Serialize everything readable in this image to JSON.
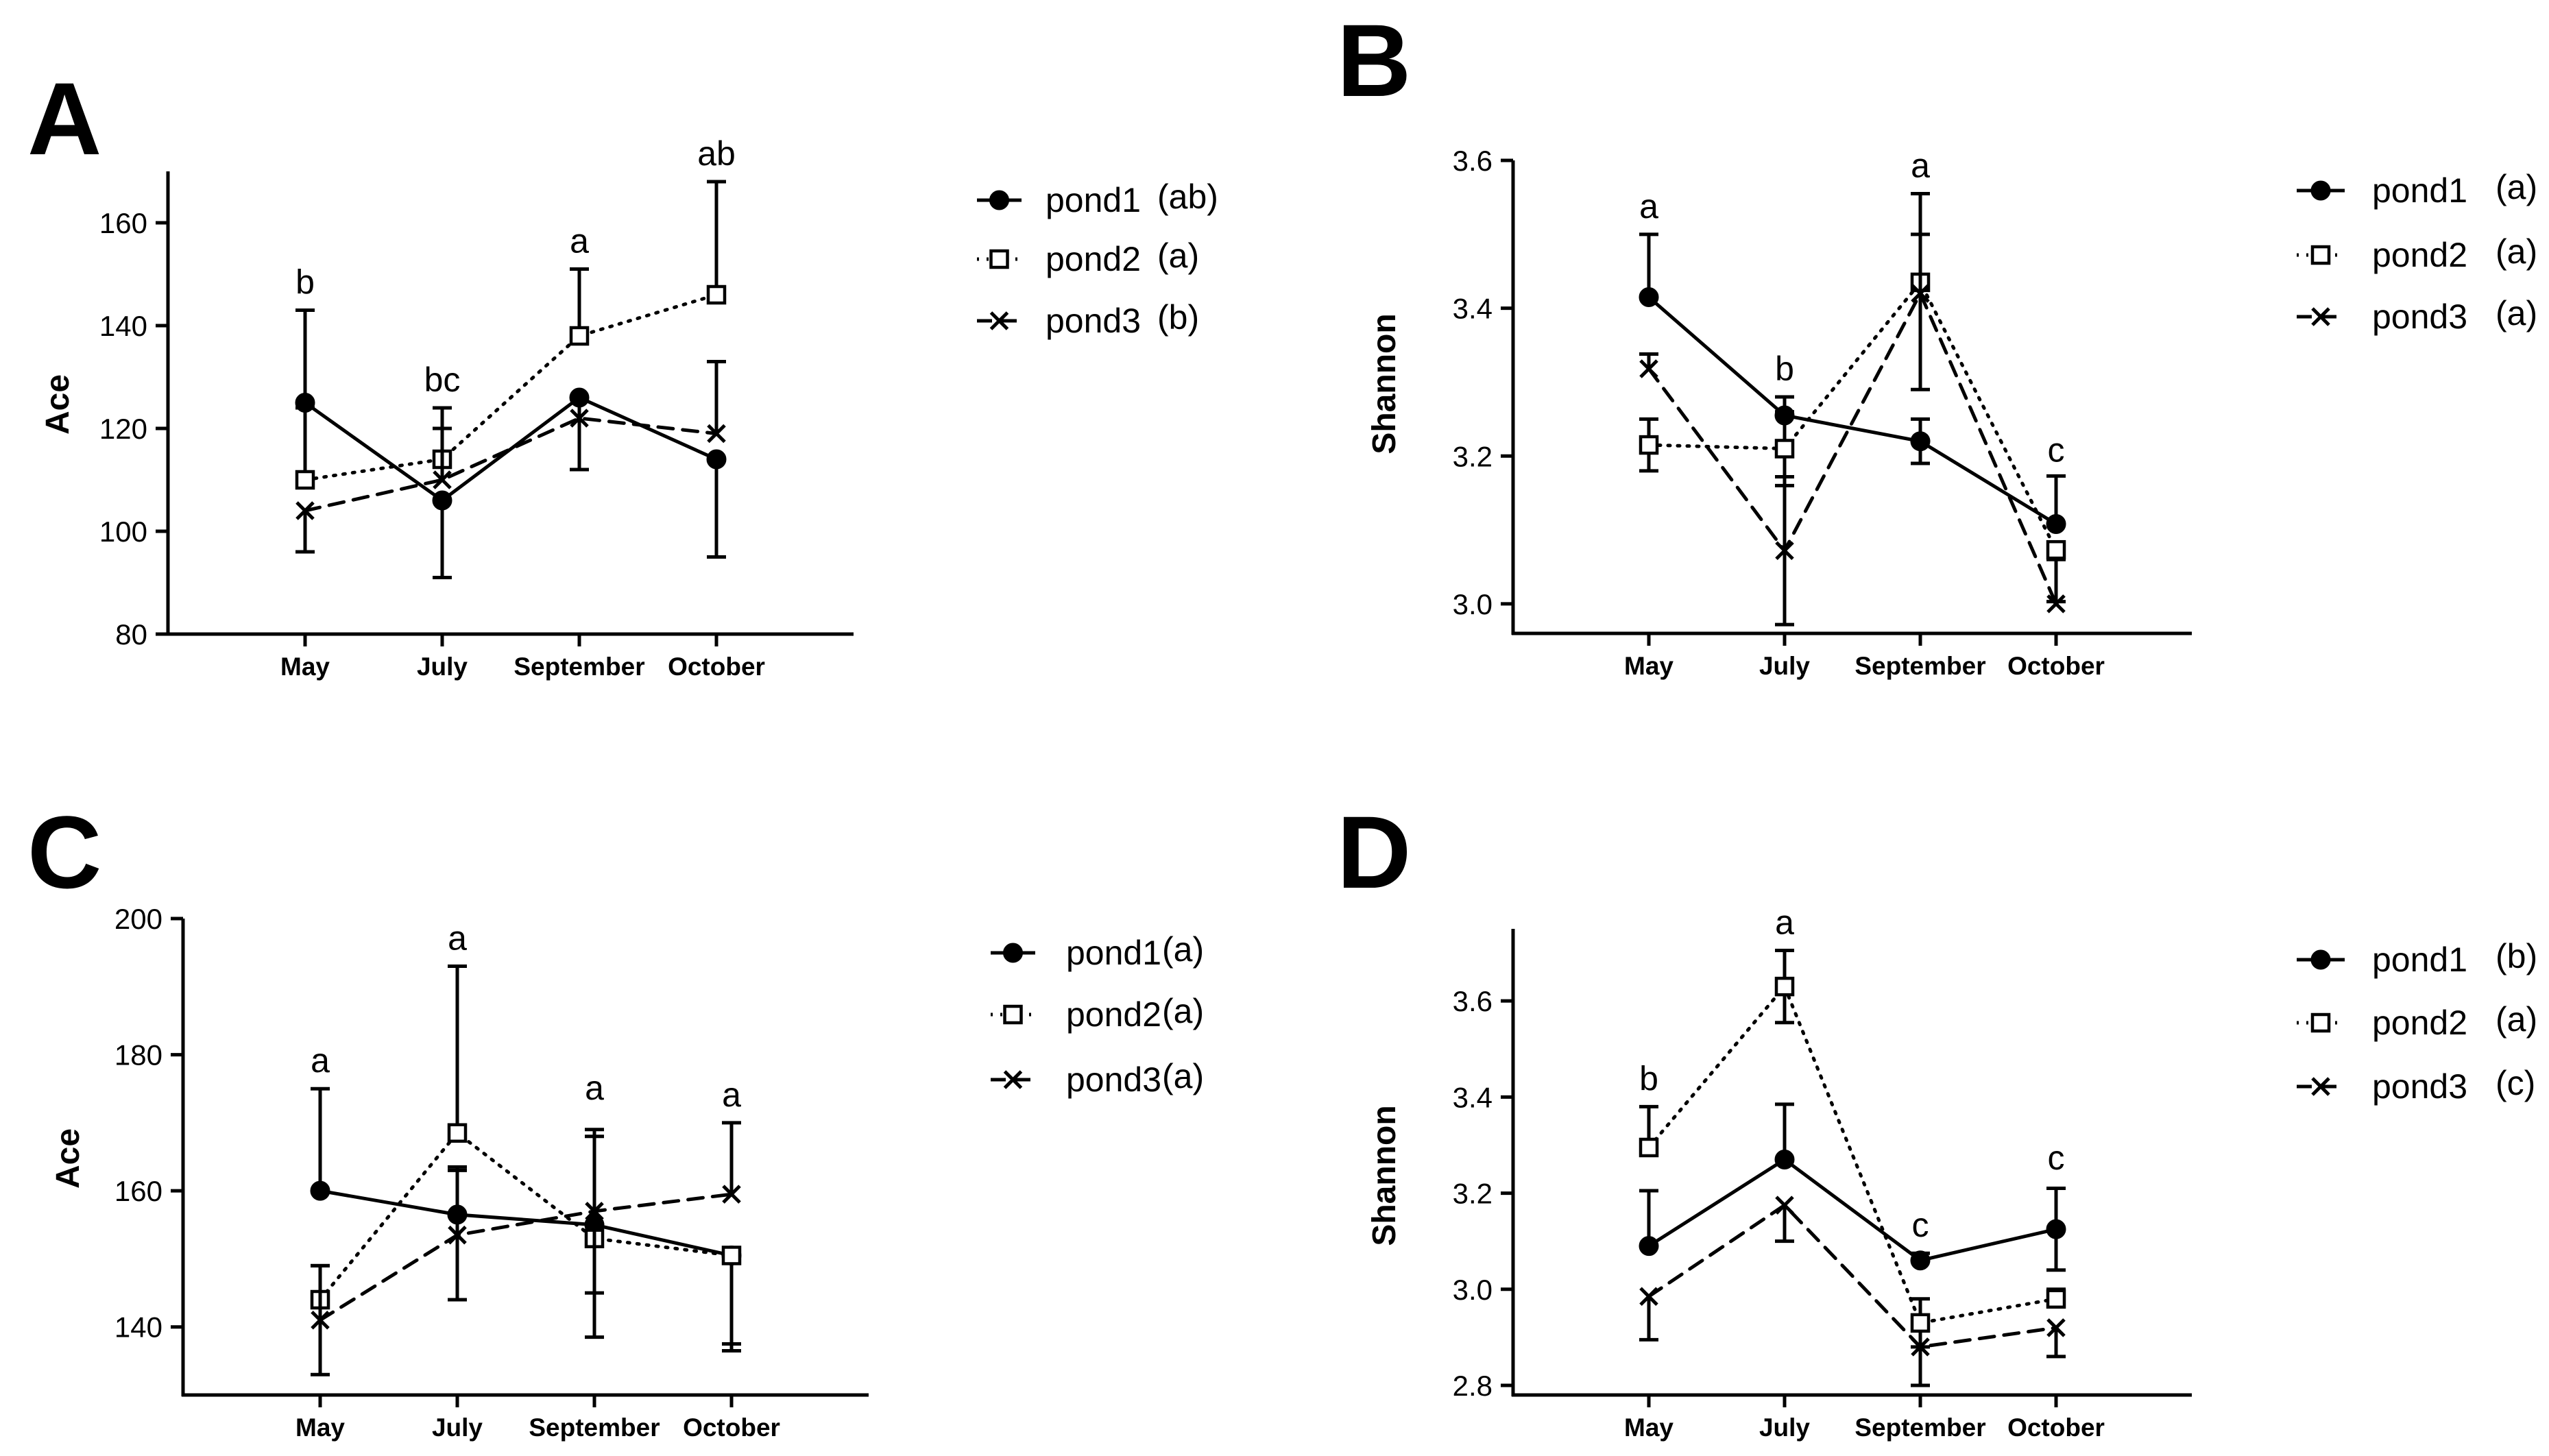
{
  "chart_data": [
    {
      "id": "A",
      "panel_label": "A",
      "type": "line",
      "ylabel": "Ace",
      "categories": [
        "May",
        "July",
        "September",
        "October"
      ],
      "ylim": [
        80,
        170
      ],
      "yticks": [
        80,
        100,
        120,
        140,
        160
      ],
      "ytick_labels": [
        "80",
        "100",
        "120",
        "140",
        "160"
      ],
      "sig_labels": [
        "b",
        "bc",
        "a",
        "ab"
      ],
      "sig_anchor": [
        143,
        124,
        151,
        168
      ],
      "series": [
        {
          "name": "pond1",
          "legend_label": "pond1",
          "legend_sig": "(ab)",
          "marker": "circle",
          "line": "solid",
          "values": [
            125,
            106,
            126,
            114
          ],
          "err": [
            [
              0,
              18
            ],
            [
              15,
              0
            ],
            [
              14,
              0
            ],
            [
              19,
              0
            ]
          ]
        },
        {
          "name": "pond2",
          "legend_label": "pond2",
          "legend_sig": "(a)",
          "marker": "square",
          "line": "dotted",
          "values": [
            110,
            114,
            138,
            146
          ],
          "err": [
            [
              0,
              14
            ],
            [
              0,
              10
            ],
            [
              0,
              13
            ],
            [
              0,
              22
            ]
          ]
        },
        {
          "name": "pond3",
          "legend_label": "pond3",
          "legend_sig": "(b)",
          "marker": "x",
          "line": "dashed",
          "values": [
            104,
            110,
            122,
            119
          ],
          "err": [
            [
              8,
              0
            ],
            [
              0,
              10
            ],
            [
              10,
              0
            ],
            [
              0,
              14
            ]
          ]
        }
      ]
    },
    {
      "id": "B",
      "panel_label": "B",
      "type": "line",
      "ylabel": "Shannon",
      "categories": [
        "May",
        "July",
        "September",
        "October"
      ],
      "ylim": [
        2.96,
        3.6
      ],
      "yticks": [
        3.0,
        3.2,
        3.4,
        3.6
      ],
      "ytick_labels": [
        "3.0",
        "3.2",
        "3.4",
        "3.6"
      ],
      "sig_labels": [
        "a",
        "b",
        "a",
        "c"
      ],
      "sig_anchor": [
        3.5,
        3.28,
        3.555,
        3.17
      ],
      "series": [
        {
          "name": "pond1",
          "legend_label": "pond1",
          "legend_sig": "(a)",
          "marker": "circle",
          "line": "solid",
          "values": [
            3.415,
            3.255,
            3.22,
            3.108
          ],
          "err": [
            [
              0,
              0.085
            ],
            [
              0,
              0.025
            ],
            [
              0.03,
              0.03
            ],
            [
              0,
              0.065
            ]
          ]
        },
        {
          "name": "pond2",
          "legend_label": "pond2",
          "legend_sig": "(a)",
          "marker": "square",
          "line": "dotted",
          "values": [
            3.215,
            3.21,
            3.435,
            3.073
          ],
          "err": [
            [
              0.035,
              0.035
            ],
            [
              0.05,
              0.05
            ],
            [
              0,
              0.12
            ],
            [
              0.07,
              0
            ]
          ]
        },
        {
          "name": "pond3",
          "legend_label": "pond3",
          "legend_sig": "(a)",
          "marker": "x",
          "line": "dashed",
          "values": [
            3.318,
            3.072,
            3.42,
            3.0
          ],
          "err": [
            [
              0,
              0.02
            ],
            [
              0.1,
              0.1
            ],
            [
              0.13,
              0.08
            ],
            [
              0,
              0.06
            ]
          ]
        }
      ]
    },
    {
      "id": "C",
      "panel_label": "C",
      "type": "line",
      "ylabel": "Ace",
      "categories": [
        "May",
        "July",
        "September",
        "October"
      ],
      "ylim": [
        130,
        200
      ],
      "yticks": [
        140,
        160,
        180,
        200
      ],
      "ytick_labels": [
        "140",
        "160",
        "180",
        "200"
      ],
      "sig_labels": [
        "a",
        "a",
        "a",
        "a"
      ],
      "sig_anchor": [
        175,
        193,
        171,
        170
      ],
      "series": [
        {
          "name": "pond1",
          "legend_label": "pond1",
          "legend_sig": "(a)",
          "marker": "circle",
          "line": "solid",
          "values": [
            160,
            156.5,
            155,
            150.5
          ],
          "err": [
            [
              0,
              15
            ],
            [
              0,
              7
            ],
            [
              0,
              13
            ],
            [
              13,
              0
            ]
          ]
        },
        {
          "name": "pond2",
          "legend_label": "pond2",
          "legend_sig": "(a)",
          "marker": "square",
          "line": "dotted",
          "values": [
            144,
            168.5,
            153,
            150.5
          ],
          "err": [
            [
              0,
              5
            ],
            [
              0,
              24.5
            ],
            [
              14.5,
              0
            ],
            [
              14,
              0
            ]
          ]
        },
        {
          "name": "pond3",
          "legend_label": "pond3",
          "legend_sig": "(a)",
          "marker": "x",
          "line": "dashed",
          "values": [
            141,
            153.5,
            157,
            159.5
          ],
          "err": [
            [
              8,
              8
            ],
            [
              9.5,
              9.5
            ],
            [
              12,
              12
            ],
            [
              0,
              10.5
            ]
          ]
        }
      ]
    },
    {
      "id": "D",
      "panel_label": "D",
      "type": "line",
      "ylabel": "Shannon",
      "categories": [
        "May",
        "July",
        "September",
        "October"
      ],
      "ylim": [
        2.78,
        3.75
      ],
      "yticks": [
        2.8,
        3.0,
        3.2,
        3.4,
        3.6
      ],
      "ytick_labels": [
        "2.8",
        "3.0",
        "3.2",
        "3.4",
        "3.6"
      ],
      "sig_labels": [
        "b",
        "a",
        "c",
        "c"
      ],
      "sig_anchor": [
        3.38,
        3.705,
        3.075,
        3.215
      ],
      "series": [
        {
          "name": "pond1",
          "legend_label": "pond1",
          "legend_sig": "(b)",
          "marker": "circle",
          "line": "solid",
          "values": [
            3.09,
            3.27,
            3.06,
            3.125
          ],
          "err": [
            [
              0,
              0.115
            ],
            [
              0,
              0.115
            ],
            [
              0,
              0.015
            ],
            [
              0.085,
              0.085
            ]
          ]
        },
        {
          "name": "pond2",
          "legend_label": "pond2",
          "legend_sig": "(a)",
          "marker": "square",
          "line": "dotted",
          "values": [
            3.295,
            3.63,
            2.93,
            2.98
          ],
          "err": [
            [
              0,
              0.085
            ],
            [
              0.075,
              0.075
            ],
            [
              0.05,
              0.05
            ],
            [
              0,
              0.02
            ]
          ]
        },
        {
          "name": "pond3",
          "legend_label": "pond3",
          "legend_sig": "(c)",
          "marker": "x",
          "line": "dashed",
          "values": [
            2.985,
            3.175,
            2.88,
            2.92
          ],
          "err": [
            [
              0.09,
              0
            ],
            [
              0.075,
              0
            ],
            [
              0.08,
              0
            ],
            [
              0.06,
              0
            ]
          ]
        }
      ]
    }
  ]
}
